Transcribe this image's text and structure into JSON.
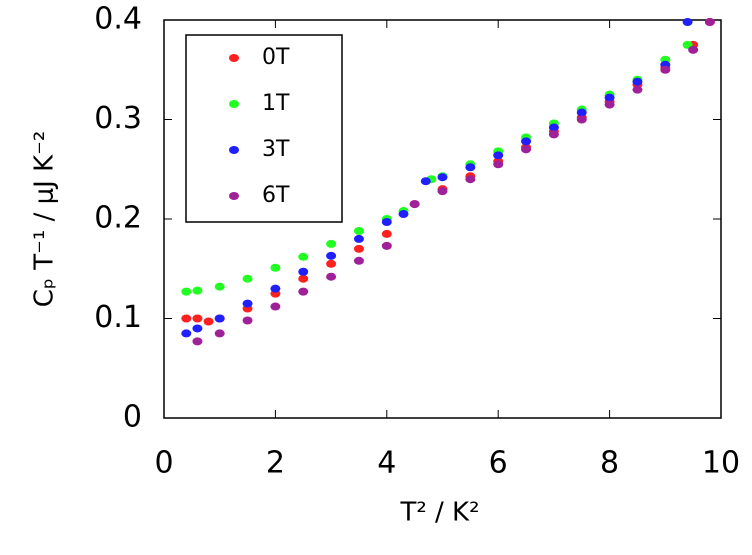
{
  "chart_data": {
    "type": "scatter",
    "xlabel": "T² / K²",
    "ylabel": "Cₚ T⁻¹ / μJ K⁻²",
    "xlim": [
      0,
      10
    ],
    "ylim": [
      0,
      0.4
    ],
    "xticks": [
      0,
      2,
      4,
      6,
      8,
      10
    ],
    "yticks": [
      0,
      0.1,
      0.2,
      0.3,
      0.4
    ],
    "legend": "upper left",
    "series": [
      {
        "name": "0T",
        "color": "#ff2020",
        "x": [
          0.4,
          0.6,
          0.8,
          1,
          1.5,
          2,
          2.5,
          3,
          3.5,
          4,
          4.5,
          5,
          5.5,
          6,
          6.5,
          7,
          7.5,
          8,
          8.5,
          9,
          9.5,
          9.8
        ],
        "values": [
          0.1,
          0.1,
          0.097,
          0.1,
          0.11,
          0.125,
          0.14,
          0.155,
          0.17,
          0.185,
          0.215,
          0.23,
          0.243,
          0.258,
          0.272,
          0.288,
          0.302,
          0.318,
          0.335,
          0.352,
          0.375,
          0.398
        ]
      },
      {
        "name": "1T",
        "color": "#20ff20",
        "x": [
          0.4,
          0.6,
          1,
          1.5,
          2,
          2.5,
          3,
          3.5,
          4,
          4.3,
          4.8,
          5,
          5.5,
          6,
          6.5,
          7,
          7.5,
          8,
          8.5,
          9,
          9.4
        ],
        "values": [
          0.127,
          0.128,
          0.132,
          0.14,
          0.151,
          0.162,
          0.175,
          0.188,
          0.2,
          0.208,
          0.24,
          0.243,
          0.255,
          0.268,
          0.282,
          0.296,
          0.31,
          0.325,
          0.34,
          0.36,
          0.375
        ]
      },
      {
        "name": "3T",
        "color": "#2020ff",
        "x": [
          0.4,
          0.6,
          1,
          1.5,
          2,
          2.5,
          3,
          3.5,
          4,
          4.3,
          4.7,
          5,
          5.5,
          6,
          6.5,
          7,
          7.5,
          8,
          8.5,
          9,
          9.4
        ],
        "values": [
          0.085,
          0.09,
          0.1,
          0.115,
          0.13,
          0.147,
          0.163,
          0.18,
          0.197,
          0.205,
          0.238,
          0.242,
          0.252,
          0.264,
          0.278,
          0.292,
          0.307,
          0.322,
          0.338,
          0.355,
          0.398
        ]
      },
      {
        "name": "6T",
        "color": "#a0209a",
        "x": [
          0.6,
          1,
          1.5,
          2,
          2.5,
          3,
          3.5,
          4,
          4.5,
          5,
          5.5,
          6,
          6.5,
          7,
          7.5,
          8,
          8.5,
          9,
          9.5,
          9.8
        ],
        "values": [
          0.077,
          0.085,
          0.098,
          0.112,
          0.127,
          0.142,
          0.158,
          0.173,
          0.215,
          0.228,
          0.24,
          0.255,
          0.27,
          0.285,
          0.3,
          0.315,
          0.33,
          0.35,
          0.37,
          0.398
        ]
      }
    ]
  }
}
